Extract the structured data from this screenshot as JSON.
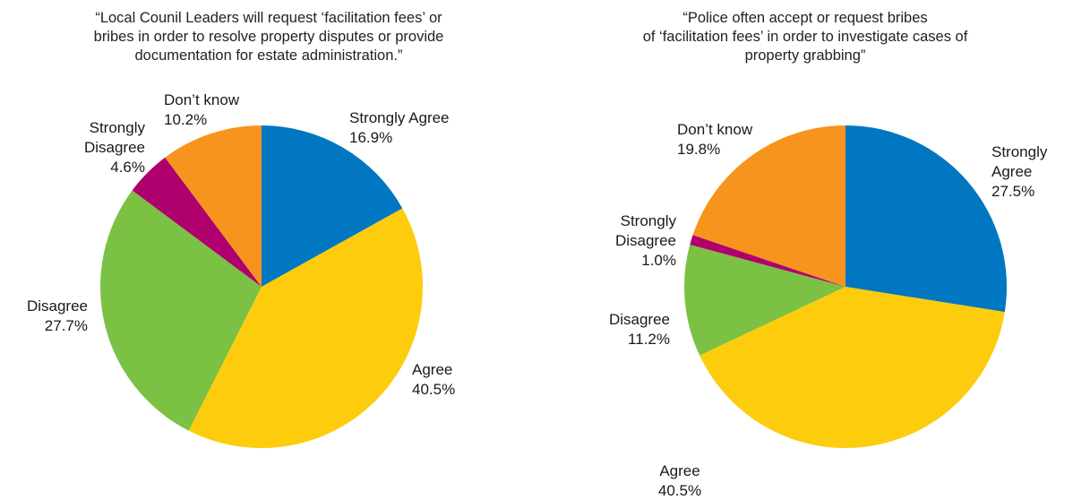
{
  "chart_data": [
    {
      "type": "pie",
      "title": "“Local Counil Leaders will request ‘facilitation fees’ or bribes in order to resolve property disputes or provide documentation for estate administration.”",
      "title_lines": [
        "“Local Counil Leaders will request ‘facilitation fees’ or",
        "bribes in order to resolve property disputes or provide",
        "documentation for estate administration.”"
      ],
      "slices": [
        {
          "label": "Strongly Agree",
          "label_lines": [
            "Strongly Agree"
          ],
          "value": 16.9,
          "value_text": "16.9%",
          "color": "#0077c0"
        },
        {
          "label": "Agree",
          "label_lines": [
            "Agree"
          ],
          "value": 40.5,
          "value_text": "40.5%",
          "color": "#fdcc0d"
        },
        {
          "label": "Disagree",
          "label_lines": [
            "Disagree"
          ],
          "value": 27.7,
          "value_text": "27.7%",
          "color": "#7bc143"
        },
        {
          "label": "Strongly Disagree",
          "label_lines": [
            "Strongly",
            "Disagree"
          ],
          "value": 4.6,
          "value_text": "4.6%",
          "color": "#b0006d"
        },
        {
          "label": "Don't know",
          "label_lines": [
            "Don’t know"
          ],
          "value": 10.2,
          "value_text": "10.2%",
          "color": "#f7941d"
        }
      ]
    },
    {
      "type": "pie",
      "title": "“Police often accept or request bribes of ‘facilitation fees’ in order to investigate cases of property grabbing”",
      "title_lines": [
        "“Police often accept or request bribes",
        "of ‘facilitation fees’ in order to investigate cases of",
        "property grabbing”"
      ],
      "slices": [
        {
          "label": "Strongly Agree",
          "label_lines": [
            "Strongly",
            "Agree"
          ],
          "value": 27.5,
          "value_text": "27.5%",
          "color": "#0077c0"
        },
        {
          "label": "Agree",
          "label_lines": [
            "Agree"
          ],
          "value": 40.5,
          "value_text": "40.5%",
          "color": "#fdcc0d"
        },
        {
          "label": "Disagree",
          "label_lines": [
            "Disagree"
          ],
          "value": 11.2,
          "value_text": "11.2%",
          "color": "#7bc143"
        },
        {
          "label": "Strongly Disagree",
          "label_lines": [
            "Strongly",
            "Disagree"
          ],
          "value": 1.0,
          "value_text": "1.0%",
          "color": "#b0006d"
        },
        {
          "label": "Don't know",
          "label_lines": [
            "Don’t know"
          ],
          "value": 19.8,
          "value_text": "19.8%",
          "color": "#f7941d"
        }
      ]
    }
  ]
}
